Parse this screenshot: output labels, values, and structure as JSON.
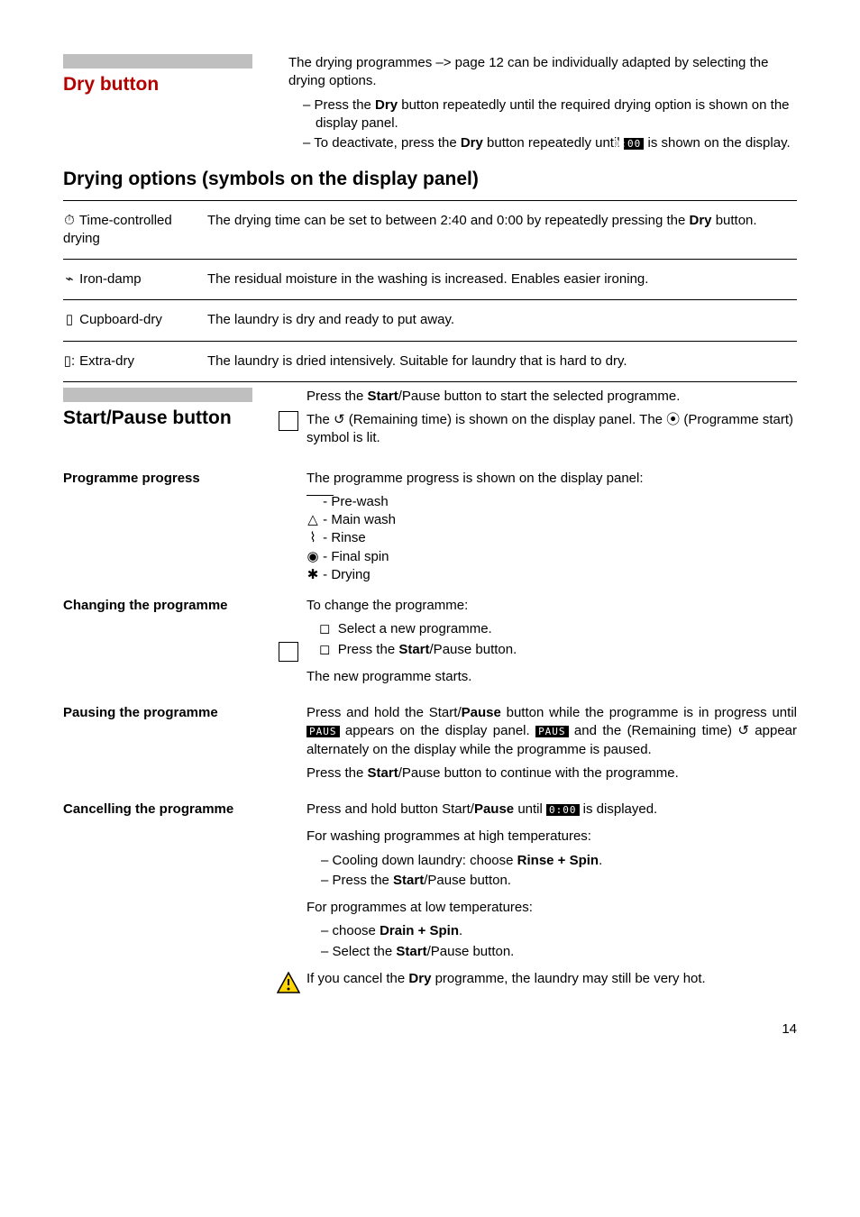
{
  "dry": {
    "title": "Dry button",
    "intro": "The drying programmes –> page 12 can be individually adapted by selecting the drying options.",
    "bullet1_pre": "Press the ",
    "bullet1_bold": "Dry",
    "bullet1_post": " button repeatedly until the required drying option is shown on the display panel.",
    "bullet2_pre": "To deactivate, press the ",
    "bullet2_bold": "Dry",
    "bullet2_mid": " button repeatedly until ",
    "bullet2_code": "0:00",
    "bullet2_post": " is shown on the display."
  },
  "opts": {
    "title": "Drying options (symbols on the display panel)",
    "rows": [
      {
        "icon": "⏱",
        "label": "Time-controlled drying",
        "desc_pre": "The drying time can be set to between 2:40 and 0:00 by repeatedly pressing the ",
        "desc_bold": "Dry",
        "desc_post": " button."
      },
      {
        "icon": "⌁",
        "label": "Iron-damp",
        "desc": "The residual moisture in the washing is increased. Enables easier ironing."
      },
      {
        "icon": "▯",
        "label": "Cupboard-dry",
        "desc": "The laundry is dry and ready to put away."
      },
      {
        "icon": "▯:",
        "label": "Extra-dry",
        "desc": "The laundry is dried intensively. Suitable for laundry that is hard to dry."
      }
    ]
  },
  "sp": {
    "title": "Start/Pause button",
    "p1_pre": "Press the ",
    "p1_bold": "Start",
    "p1_post": "/Pause button to start the selected programme.",
    "p2_a": "The ",
    "p2_icon1": "↺",
    "p2_b": " (Remaining time) is shown on the display panel. The ",
    "p2_icon2": "⦿",
    "p2_c": "(Programme start) symbol is lit."
  },
  "prog": {
    "label": "Programme progress",
    "intro": "The programme progress is shown on the display panel:",
    "items": [
      {
        "icon": "⎺⎺",
        "text": " - Pre-wash"
      },
      {
        "icon": "△",
        "text": " - Main wash"
      },
      {
        "icon": "⌇",
        "text": " - Rinse"
      },
      {
        "icon": "◉",
        "text": " - Final spin"
      },
      {
        "icon": "✱",
        "text": " - Drying"
      }
    ]
  },
  "chg": {
    "label": "Changing the programme",
    "intro": "To change the programme:",
    "b1": "Select a new programme.",
    "b2_pre": "Press the ",
    "b2_bold": "Start",
    "b2_post": "/Pause button.",
    "out": "The new programme starts."
  },
  "pause": {
    "label": "Pausing the programme",
    "p1_a": "Press and hold the Start/",
    "p1_b": "Pause",
    "p1_c": " button while the programme is in progress until ",
    "code1": "PAUS",
    "p1_d": " appears on the display panel. ",
    "code2": "PAUS",
    "p1_e": " and the (Remaining time) ",
    "icon": "↺",
    "p1_f": " appear alternately on the display while the programme is paused.",
    "p2_a": "Press the ",
    "p2_b": "Start",
    "p2_c": "/Pause button to continue with the programme."
  },
  "cancel": {
    "label": "Cancelling the programme",
    "p1_a": "Press and hold button Start/",
    "p1_b": "Pause",
    "p1_c": " until ",
    "code": "0:00",
    "p1_d": " is displayed.",
    "hi_intro": "For washing programmes at high temperatures:",
    "hi_b1_a": "Cooling down laundry: choose ",
    "hi_b1_b": "Rinse + Spin",
    "hi_b1_c": ".",
    "hi_b2_a": "Press the ",
    "hi_b2_b": "Start",
    "hi_b2_c": "/Pause button.",
    "lo_intro": "For programmes at low temperatures:",
    "lo_b1_a": "choose ",
    "lo_b1_b": "Drain + Spin",
    "lo_b1_c": ".",
    "lo_b2_a": "Select the ",
    "lo_b2_b": "Start",
    "lo_b2_c": "/Pause button.",
    "warn_a": "If you cancel the ",
    "warn_b": "Dry",
    "warn_c": " programme, the laundry may still be very hot."
  },
  "page": "14"
}
